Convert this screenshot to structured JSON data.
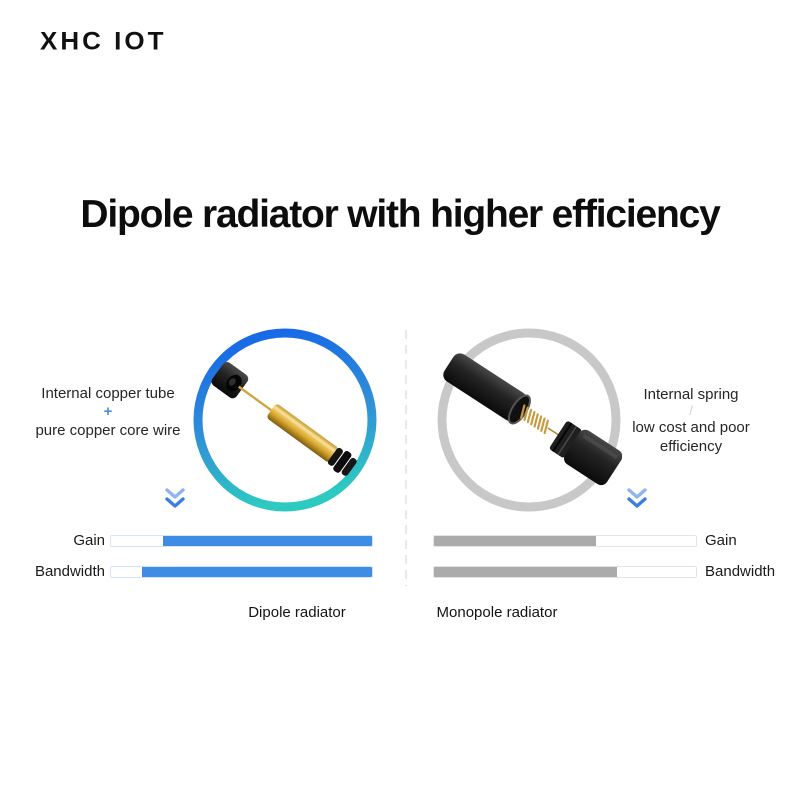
{
  "logo": {
    "text": "XHC IOT"
  },
  "headline": {
    "text": "Dipole radiator with higher efficiency"
  },
  "dipole": {
    "annotation_line1": "Internal copper tube",
    "annotation_separator": "+",
    "annotation_line2": "pure copper core wire",
    "caption": "Dipole radiator",
    "gain_label": "Gain",
    "gain_percent": 80,
    "bandwidth_label": "Bandwidth",
    "bandwidth_percent": 88
  },
  "monopole": {
    "annotation_line1": "Internal spring",
    "annotation_separator": "/",
    "annotation_line2": "low cost and poor efficiency",
    "caption": "Monopole radiator",
    "gain_label": "Gain",
    "gain_percent": 62,
    "bandwidth_label": "Bandwidth",
    "bandwidth_percent": 70
  },
  "icons": {
    "dipole_chevron": "chevron-double-down",
    "monopole_chevron": "chevron-double-down",
    "plus_separator": "plus",
    "slash_separator": "slash"
  },
  "colors": {
    "bar_blue": "#3e8ce3",
    "bar_gray": "#ababab",
    "track_border_blue": "#d5e5f6",
    "track_border_gray": "#e4e4e4",
    "ring_gradient_top": "#1568e6",
    "ring_gradient_bottom": "#2dcac2",
    "ring_gray": "#c8c8c8",
    "chevron_blue_light": "#8fb4f2",
    "chevron_blue_dark": "#3d7ce0",
    "plus_blue": "#4a90e2",
    "text_dark": "#0d0d0d"
  },
  "chart_data": [
    {
      "type": "bar",
      "title": "Dipole radiator",
      "categories": [
        "Gain",
        "Bandwidth"
      ],
      "values": [
        80,
        88
      ],
      "unit": "percent of track filled",
      "bar_color": "#3e8ce3",
      "fill_anchor": "right"
    },
    {
      "type": "bar",
      "title": "Monopole radiator",
      "categories": [
        "Gain",
        "Bandwidth"
      ],
      "values": [
        62,
        70
      ],
      "unit": "percent of track filled",
      "bar_color": "#ababab",
      "fill_anchor": "left"
    }
  ]
}
